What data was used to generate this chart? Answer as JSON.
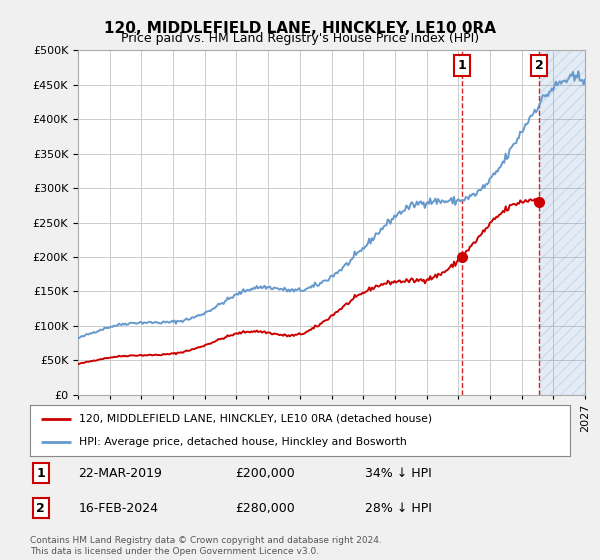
{
  "title": "120, MIDDLEFIELD LANE, HINCKLEY, LE10 0RA",
  "subtitle": "Price paid vs. HM Land Registry's House Price Index (HPI)",
  "footer": "Contains HM Land Registry data © Crown copyright and database right 2024.\nThis data is licensed under the Open Government Licence v3.0.",
  "legend_property": "120, MIDDLEFIELD LANE, HINCKLEY, LE10 0RA (detached house)",
  "legend_hpi": "HPI: Average price, detached house, Hinckley and Bosworth",
  "transaction1_date": "22-MAR-2019",
  "transaction1_price": 200000,
  "transaction1_label": "34% ↓ HPI",
  "transaction1_year": 2019.22,
  "transaction2_date": "16-FEB-2024",
  "transaction2_price": 280000,
  "transaction2_label": "28% ↓ HPI",
  "transaction2_year": 2024.12,
  "ylim": [
    0,
    500000
  ],
  "xlim_start": 1995,
  "xlim_end": 2027,
  "hatch_start": 2024.12,
  "property_color": "#cc0000",
  "hpi_color": "#6699cc",
  "background_color": "#f0f0f0",
  "plot_bg_color": "#ffffff",
  "grid_color": "#cccccc"
}
